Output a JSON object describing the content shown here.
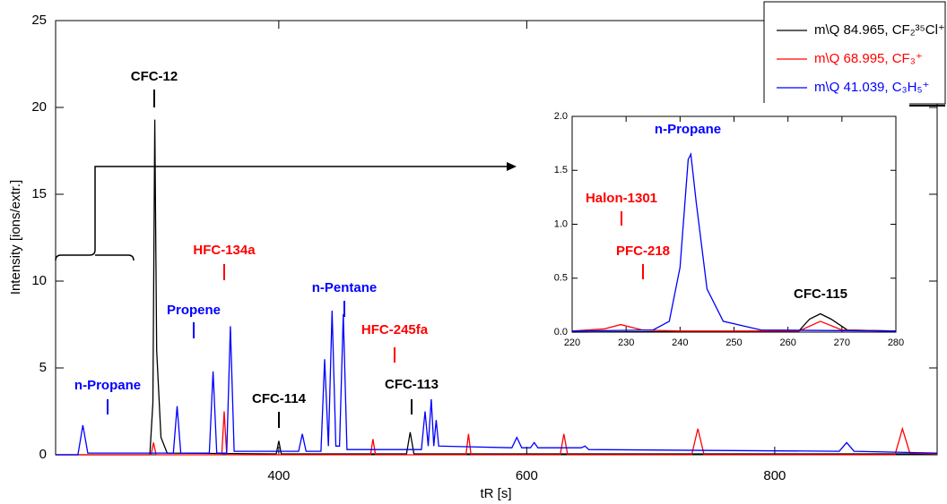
{
  "chart_data": [
    {
      "type": "line",
      "x_label": "tR [s]",
      "y_label": "Intensity [ions/extr.]",
      "xlim": [
        220,
        931
      ],
      "ylim": [
        0,
        25
      ],
      "xticks": [
        400,
        600,
        800
      ],
      "yticks": [
        0,
        5,
        10,
        15,
        20,
        25
      ],
      "legend": "upper right",
      "series": [
        {
          "name": "m\\Q 84.965, CF₂³⁵Cl⁺",
          "color": "#000000",
          "x": [
            220,
            296,
            298.5,
            300,
            301.5,
            305,
            310,
            398,
            400,
            402,
            503,
            506,
            509,
            931
          ],
          "values": [
            0,
            0,
            3,
            19.3,
            6,
            1,
            0.1,
            0.05,
            0.8,
            0.05,
            0.05,
            1.3,
            0.05,
            0.05
          ]
        },
        {
          "name": "m\\Q 68.995, CF₃⁺",
          "color": "#ff0000",
          "x": [
            220,
            297,
            299,
            301,
            354,
            356,
            358,
            474,
            476,
            478,
            551,
            553,
            555,
            627,
            630,
            633,
            733,
            738,
            743,
            897,
            903,
            909,
            931
          ],
          "values": [
            0,
            0,
            0.7,
            0,
            0,
            2.5,
            0,
            0,
            0.9,
            0,
            0,
            1.2,
            0,
            0,
            1.2,
            0,
            0,
            1.5,
            0,
            0,
            1.5,
            0.1,
            0.05
          ]
        },
        {
          "name": "m\\Q 41.039, C₃H₅⁺",
          "color": "#0000ff",
          "x": [
            220,
            238,
            242,
            246,
            315,
            318,
            321,
            344,
            347,
            350,
            358,
            361,
            364,
            416,
            419,
            422,
            434,
            437,
            440,
            443,
            446,
            449,
            452,
            455,
            515,
            518,
            520.5,
            523,
            525,
            527,
            529,
            588,
            592,
            596,
            603,
            606,
            609,
            644,
            647,
            650,
            852,
            858,
            864,
            931
          ],
          "values": [
            0,
            0,
            1.7,
            0.1,
            0.1,
            2.8,
            0.1,
            0.1,
            4.8,
            0.1,
            0.1,
            7.4,
            0.2,
            0.2,
            1.2,
            0.2,
            0.2,
            5.5,
            0.5,
            8.3,
            0.5,
            0.5,
            8.1,
            0.3,
            0.3,
            2.5,
            0.5,
            3.2,
            0.5,
            2.0,
            0.5,
            0.4,
            1.0,
            0.4,
            0.4,
            0.7,
            0.4,
            0.4,
            0.5,
            0.3,
            0.2,
            0.7,
            0.2,
            0.1
          ]
        }
      ],
      "annotations": [
        {
          "text": "CFC-12",
          "color": "#000000"
        },
        {
          "text": "HFC-134a",
          "color": "#ff0000"
        },
        {
          "text": "Propene",
          "color": "#0000ff"
        },
        {
          "text": "n-Pentane",
          "color": "#0000ff"
        },
        {
          "text": "HFC-245fa",
          "color": "#ff0000"
        },
        {
          "text": "n-Propane",
          "color": "#0000ff"
        },
        {
          "text": "CFC-114",
          "color": "#000000"
        },
        {
          "text": "CFC-113",
          "color": "#000000"
        }
      ]
    },
    {
      "type": "line",
      "xlim": [
        220,
        280
      ],
      "ylim": [
        0,
        2
      ],
      "xticks": [
        220,
        230,
        240,
        250,
        260,
        270,
        280
      ],
      "yticks": [
        {
          "value": 0,
          "label": "0.0"
        },
        {
          "value": 0.5,
          "label": "0.5"
        },
        {
          "value": 1,
          "label": "1.0"
        },
        {
          "value": 1.5,
          "label": "1.5"
        },
        {
          "value": 2,
          "label": "2.0"
        }
      ],
      "series": [
        {
          "color": "#000000",
          "x": [
            220,
            262,
            264,
            266,
            268,
            271,
            280
          ],
          "values": [
            0,
            0.01,
            0.12,
            0.17,
            0.12,
            0.02,
            0.01
          ]
        },
        {
          "color": "#ff0000",
          "x": [
            220,
            226,
            229,
            233,
            240,
            262,
            266,
            270,
            280
          ],
          "values": [
            0.01,
            0.03,
            0.07,
            0.02,
            0.01,
            0.01,
            0.1,
            0.02,
            0.01
          ]
        },
        {
          "color": "#0000ff",
          "x": [
            220,
            235,
            238,
            240,
            241.5,
            242,
            243,
            245,
            248,
            255,
            280
          ],
          "values": [
            0.01,
            0.02,
            0.1,
            0.6,
            1.6,
            1.65,
            1.2,
            0.4,
            0.1,
            0.02,
            0.01
          ]
        }
      ],
      "annotations": [
        {
          "text": "n-Propane",
          "color": "#0000ff"
        },
        {
          "text": "Halon-1301",
          "color": "#ff0000"
        },
        {
          "text": "PFC-218",
          "color": "#ff0000"
        },
        {
          "text": "CFC-115",
          "color": "#000000"
        }
      ]
    }
  ]
}
